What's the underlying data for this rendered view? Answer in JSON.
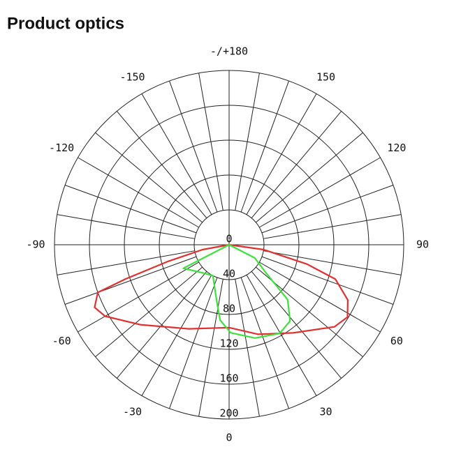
{
  "chart_data": {
    "type": "polar-line",
    "title": "Product optics",
    "rlim": [
      0,
      200
    ],
    "rticks": [
      0,
      40,
      80,
      120,
      160,
      200
    ],
    "angle_ticks": [
      {
        "value": 180,
        "label": "-/+180"
      },
      150,
      120,
      90,
      60,
      30,
      0,
      -30,
      -60,
      -90,
      -120,
      -150
    ],
    "series": [
      {
        "color": "#e03030",
        "angles": [
          90,
          82,
          76,
          72,
          65,
          58.5,
          52,
          36,
          18,
          0,
          -25.6,
          -48,
          -60,
          -65,
          -70,
          -71.7,
          -74.7,
          -79.6,
          -90
        ],
        "values": [
          0,
          40,
          92,
          128,
          150,
          159,
          153,
          125,
          108,
          95,
          107,
          137,
          164,
          170,
          160,
          125,
          73,
          31,
          0
        ]
      },
      {
        "color": "#3ee03a",
        "angles": [
          -90,
          -62.7,
          -45,
          -27.6,
          -12.8,
          -6.8,
          1,
          15.4,
          29.6,
          38.6,
          46.8,
          53,
          62.8,
          90
        ],
        "values": [
          0,
          59,
          45,
          40,
          65,
          87,
          101,
          111,
          117,
          112,
          92,
          52,
          33,
          0
        ]
      }
    ]
  }
}
